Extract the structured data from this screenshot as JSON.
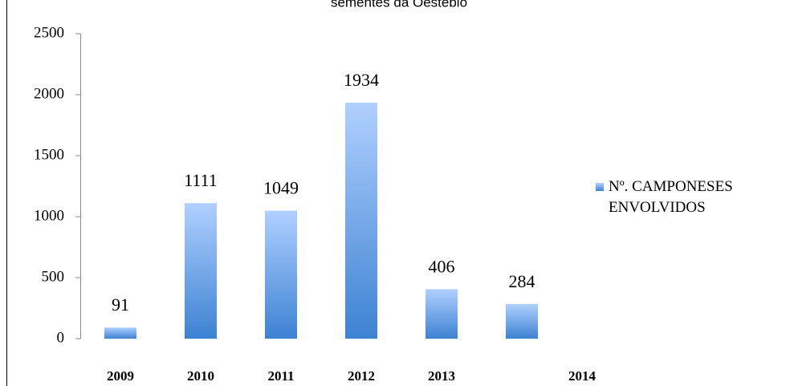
{
  "chart_data": {
    "type": "bar",
    "title": "sementes da Oestebio",
    "categories": [
      "2009",
      "2010",
      "2011",
      "2012",
      "2013",
      "2014"
    ],
    "series": [
      {
        "name": "Nº. CAMPONESES ENVOLVIDOS",
        "color": "#6aa5ef",
        "values": [
          91,
          1111,
          1049,
          1934,
          406,
          284
        ]
      }
    ],
    "ylim": [
      0,
      2500
    ],
    "yticks": [
      0,
      500,
      1000,
      1500,
      2000,
      2500
    ],
    "legend": "right"
  }
}
